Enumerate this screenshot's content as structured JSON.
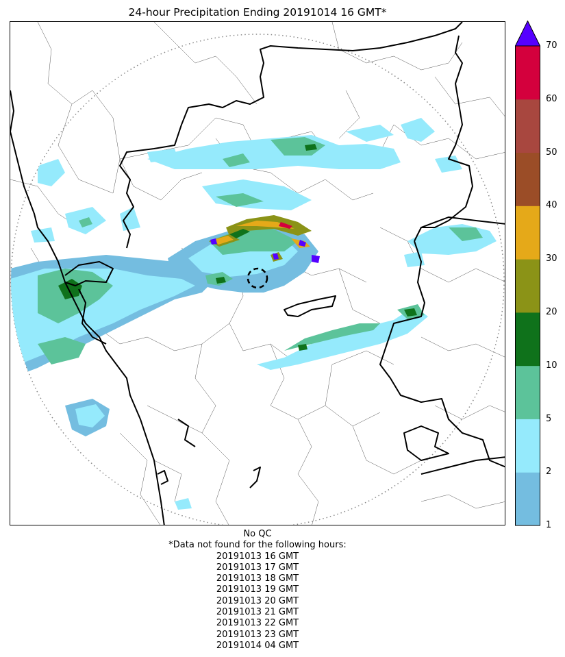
{
  "title": "24-hour Precipitation Ending 20191014 16 GMT*",
  "legend": {
    "ticks": [
      "1",
      "2",
      "5",
      "10",
      "20",
      "30",
      "40",
      "50",
      "60",
      "70"
    ],
    "colors": [
      "#74bde0",
      "#95eafc",
      "#5cc39a",
      "#0f721b",
      "#8b9317",
      "#e5a919",
      "#9b4d27",
      "#a8473f",
      "#d4003d"
    ],
    "over_color": "#5500ff"
  },
  "footer": {
    "qc": "No QC",
    "missing_header": "*Data not found for the following hours:",
    "missing_hours": [
      "20191013 16 GMT",
      "20191013 17 GMT",
      "20191013 18 GMT",
      "20191013 19 GMT",
      "20191013 20 GMT",
      "20191013 21 GMT",
      "20191013 22 GMT",
      "20191013 23 GMT",
      "20191014 04 GMT"
    ]
  }
}
